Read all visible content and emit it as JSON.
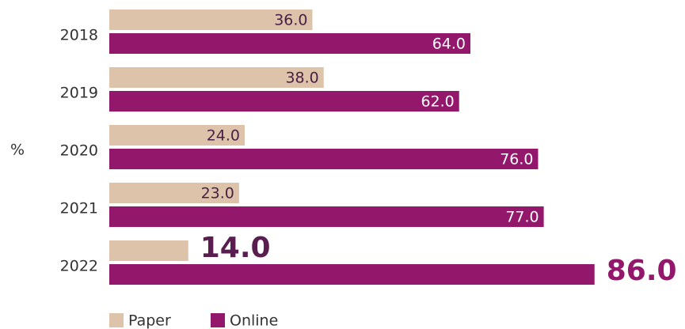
{
  "chart_data": {
    "type": "bar",
    "orientation": "horizontal",
    "y_axis_label": "%",
    "categories": [
      "2018",
      "2019",
      "2020",
      "2021",
      "2022"
    ],
    "series": [
      {
        "name": "Paper",
        "color": "#dcc3aa",
        "values": [
          36,
          38,
          24,
          23,
          14
        ],
        "value_labels": [
          "36.0",
          "38.0",
          "24.0",
          "23.0",
          "14.0"
        ]
      },
      {
        "name": "Online",
        "color": "#93186b",
        "values": [
          64,
          62,
          76,
          77,
          86
        ],
        "value_labels": [
          "64.0",
          "62.0",
          "76.0",
          "77.0",
          "86.0"
        ]
      }
    ],
    "xlim": [
      0,
      100
    ],
    "legend": "bottom-left"
  }
}
